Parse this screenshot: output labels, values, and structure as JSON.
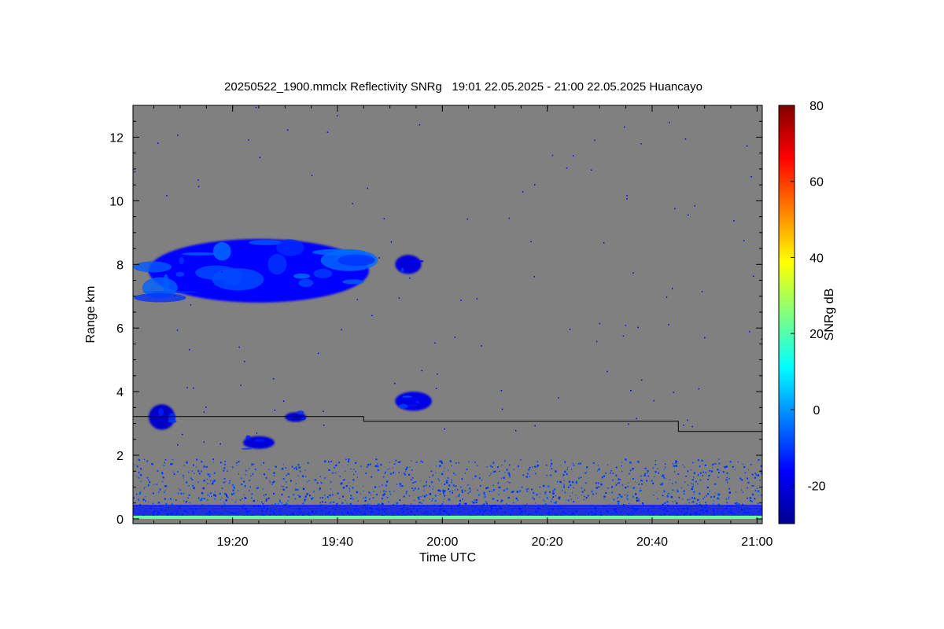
{
  "chart_data": {
    "type": "heatmap",
    "title": "20250522_1900.mmclx Reflectivity SNRg   19:01 22.05.2025 - 21:00 22.05.2025 Huancayo",
    "xlabel": "Time UTC",
    "ylabel": "Range km",
    "x_unit": "minutes since 19:00 UTC",
    "xlim": [
      1,
      121
    ],
    "ylim": [
      -0.15,
      13
    ],
    "x_ticks": [
      {
        "value": 20,
        "label": "19:20"
      },
      {
        "value": 40,
        "label": "19:40"
      },
      {
        "value": 60,
        "label": "20:00"
      },
      {
        "value": 80,
        "label": "20:20"
      },
      {
        "value": 100,
        "label": "20:40"
      },
      {
        "value": 120,
        "label": "21:00"
      }
    ],
    "y_ticks": [
      0,
      2,
      4,
      6,
      8,
      10,
      12
    ],
    "background_color": "#808080",
    "colorbar": {
      "label": "SNRg dB",
      "range": [
        -30,
        80
      ],
      "ticks": [
        -20,
        0,
        20,
        40,
        60,
        80
      ],
      "colormap": "jet"
    },
    "threshold_line": {
      "color": "#000000",
      "points": [
        [
          1,
          3.22
        ],
        [
          45,
          3.22
        ],
        [
          45,
          3.07
        ],
        [
          105,
          3.07
        ],
        [
          105,
          2.75
        ],
        [
          121,
          2.75
        ]
      ]
    },
    "echo_regions": [
      {
        "x_range": [
          4,
          46
        ],
        "y_range": [
          6.8,
          8.8
        ],
        "snr_db": -12
      },
      {
        "x_range": [
          51,
          56
        ],
        "y_range": [
          7.7,
          8.3
        ],
        "snr_db": -16
      },
      {
        "x_range": [
          4,
          9
        ],
        "y_range": [
          2.8,
          3.6
        ],
        "snr_db": -18
      },
      {
        "x_range": [
          51,
          58
        ],
        "y_range": [
          3.4,
          4.0
        ],
        "snr_db": -15
      },
      {
        "x_range": [
          22,
          28
        ],
        "y_range": [
          2.2,
          2.6
        ],
        "snr_db": -16
      },
      {
        "x_range": [
          30,
          34
        ],
        "y_range": [
          3.05,
          3.35
        ],
        "snr_db": -18
      },
      {
        "x_range": [
          1,
          121
        ],
        "y_range": [
          0.1,
          1.9
        ],
        "snr_db": -10
      },
      {
        "x_range": [
          1,
          121
        ],
        "y_range": [
          0.0,
          0.1
        ],
        "snr_db": 22
      }
    ]
  }
}
